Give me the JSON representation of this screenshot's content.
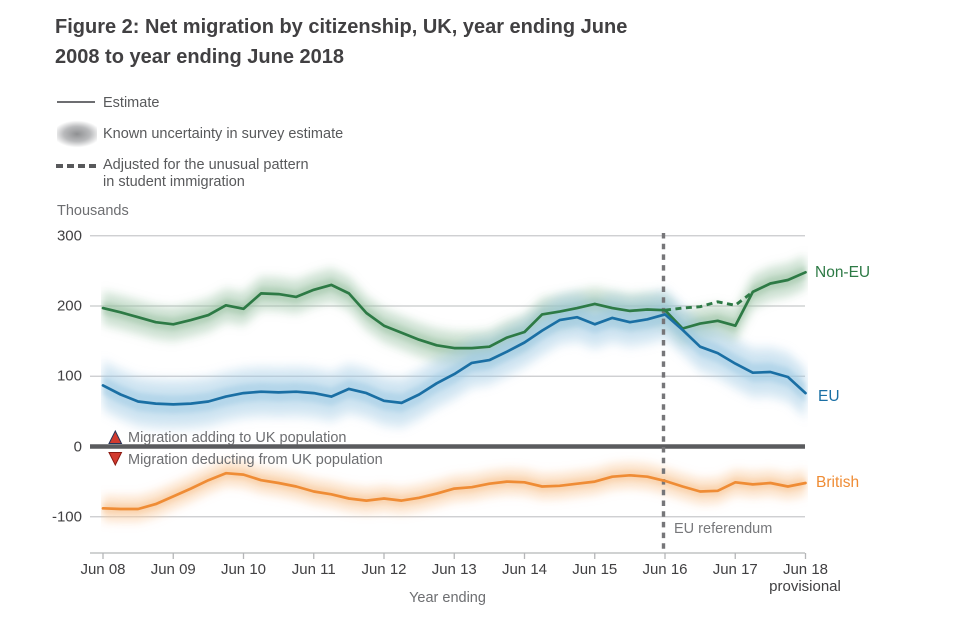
{
  "title": {
    "line1": "Figure 2: Net migration by citizenship, UK, year ending June",
    "line2": "2008 to year ending June 2018"
  },
  "legend": {
    "estimate": "Estimate",
    "uncertainty": "Known uncertainty in survey estimate",
    "adjusted_line1": "Adjusted for the unusual pattern",
    "adjusted_line2": "in student immigration"
  },
  "axis": {
    "unit_label": "Thousands",
    "x_label": "Year ending",
    "y_ticks": [
      300,
      200,
      100,
      0,
      -100
    ],
    "x_ticks": [
      "Jun 08",
      "Jun 09",
      "Jun 10",
      "Jun 11",
      "Jun 12",
      "Jun 13",
      "Jun 14",
      "Jun 15",
      "Jun 16",
      "Jun 17",
      "Jun 18"
    ],
    "x_last_note": "provisional"
  },
  "annotations": {
    "adding": "Migration adding to UK population",
    "deducting": "Migration deducting from UK population",
    "referendum": "EU referendum"
  },
  "series_labels": {
    "non_eu": "Non-EU",
    "eu": "EU",
    "british": "British"
  },
  "colors": {
    "non_eu": "#2d7a45",
    "non_eu_band": "#9dc4a5",
    "eu": "#1a6fa4",
    "eu_band": "#9ec9e4",
    "british": "#ef8c35",
    "british_band": "#f8c897",
    "zero_line": "#5a5b5e",
    "gridline": "#c8c9cb",
    "axis_line": "#b5b6b8",
    "referendum_line": "#767679",
    "triangle": "#d23a2e",
    "title_text": "#414042",
    "gray_text": "#6d6e71"
  },
  "chart_data": {
    "type": "line",
    "title": "Figure 2: Net migration by citizenship, UK, year ending June 2008 to year ending June 2018",
    "ylabel": "Thousands",
    "xlabel": "Year ending",
    "ylim": [
      -100,
      300
    ],
    "grid": "horizontal",
    "x": [
      "Jun 08",
      "Sep 08",
      "Dec 08",
      "Mar 09",
      "Jun 09",
      "Sep 09",
      "Dec 09",
      "Mar 10",
      "Jun 10",
      "Sep 10",
      "Dec 10",
      "Mar 11",
      "Jun 11",
      "Sep 11",
      "Dec 11",
      "Mar 12",
      "Jun 12",
      "Sep 12",
      "Dec 12",
      "Mar 13",
      "Jun 13",
      "Sep 13",
      "Dec 13",
      "Mar 14",
      "Jun 14",
      "Sep 14",
      "Dec 14",
      "Mar 15",
      "Jun 15",
      "Sep 15",
      "Dec 15",
      "Mar 16",
      "Jun 16",
      "Sep 16",
      "Dec 16",
      "Mar 17",
      "Jun 17",
      "Sep 17",
      "Dec 17",
      "Mar 18",
      "Jun 18"
    ],
    "series": [
      {
        "name": "Non-EU",
        "band_halfwidth": 18,
        "values": [
          197,
          191,
          184,
          177,
          174,
          180,
          187,
          201,
          196,
          218,
          217,
          213,
          223,
          230,
          218,
          190,
          172,
          162,
          152,
          144,
          140,
          140,
          142,
          155,
          163,
          188,
          192,
          197,
          203,
          197,
          193,
          195,
          194,
          168,
          175,
          179,
          172,
          220,
          232,
          237,
          248
        ]
      },
      {
        "name": "EU",
        "band_halfwidth": 26,
        "values": [
          87,
          74,
          64,
          61,
          60,
          61,
          64,
          71,
          76,
          78,
          77,
          78,
          76,
          71,
          82,
          76,
          65,
          62,
          74,
          90,
          103,
          119,
          123,
          135,
          148,
          165,
          180,
          184,
          174,
          183,
          177,
          181,
          188,
          166,
          142,
          133,
          118,
          105,
          106,
          99,
          76
        ]
      },
      {
        "name": "British",
        "band_halfwidth": 14,
        "values": [
          -88,
          -89,
          -89,
          -82,
          -71,
          -60,
          -48,
          -38,
          -40,
          -48,
          -52,
          -57,
          -64,
          -68,
          -74,
          -77,
          -74,
          -77,
          -73,
          -67,
          -60,
          -58,
          -53,
          -50,
          -51,
          -57,
          -56,
          -53,
          -50,
          -43,
          -41,
          -43,
          -49,
          -57,
          -64,
          -63,
          -51,
          -54,
          -52,
          -57,
          -52
        ]
      }
    ],
    "adjusted_series": {
      "name": "Non-EU adjusted for the unusual pattern in student immigration",
      "start_index": 32,
      "values": [
        194,
        197,
        199,
        206,
        201,
        220
      ]
    },
    "event_line": {
      "label": "EU referendum",
      "x_index": 32
    }
  }
}
